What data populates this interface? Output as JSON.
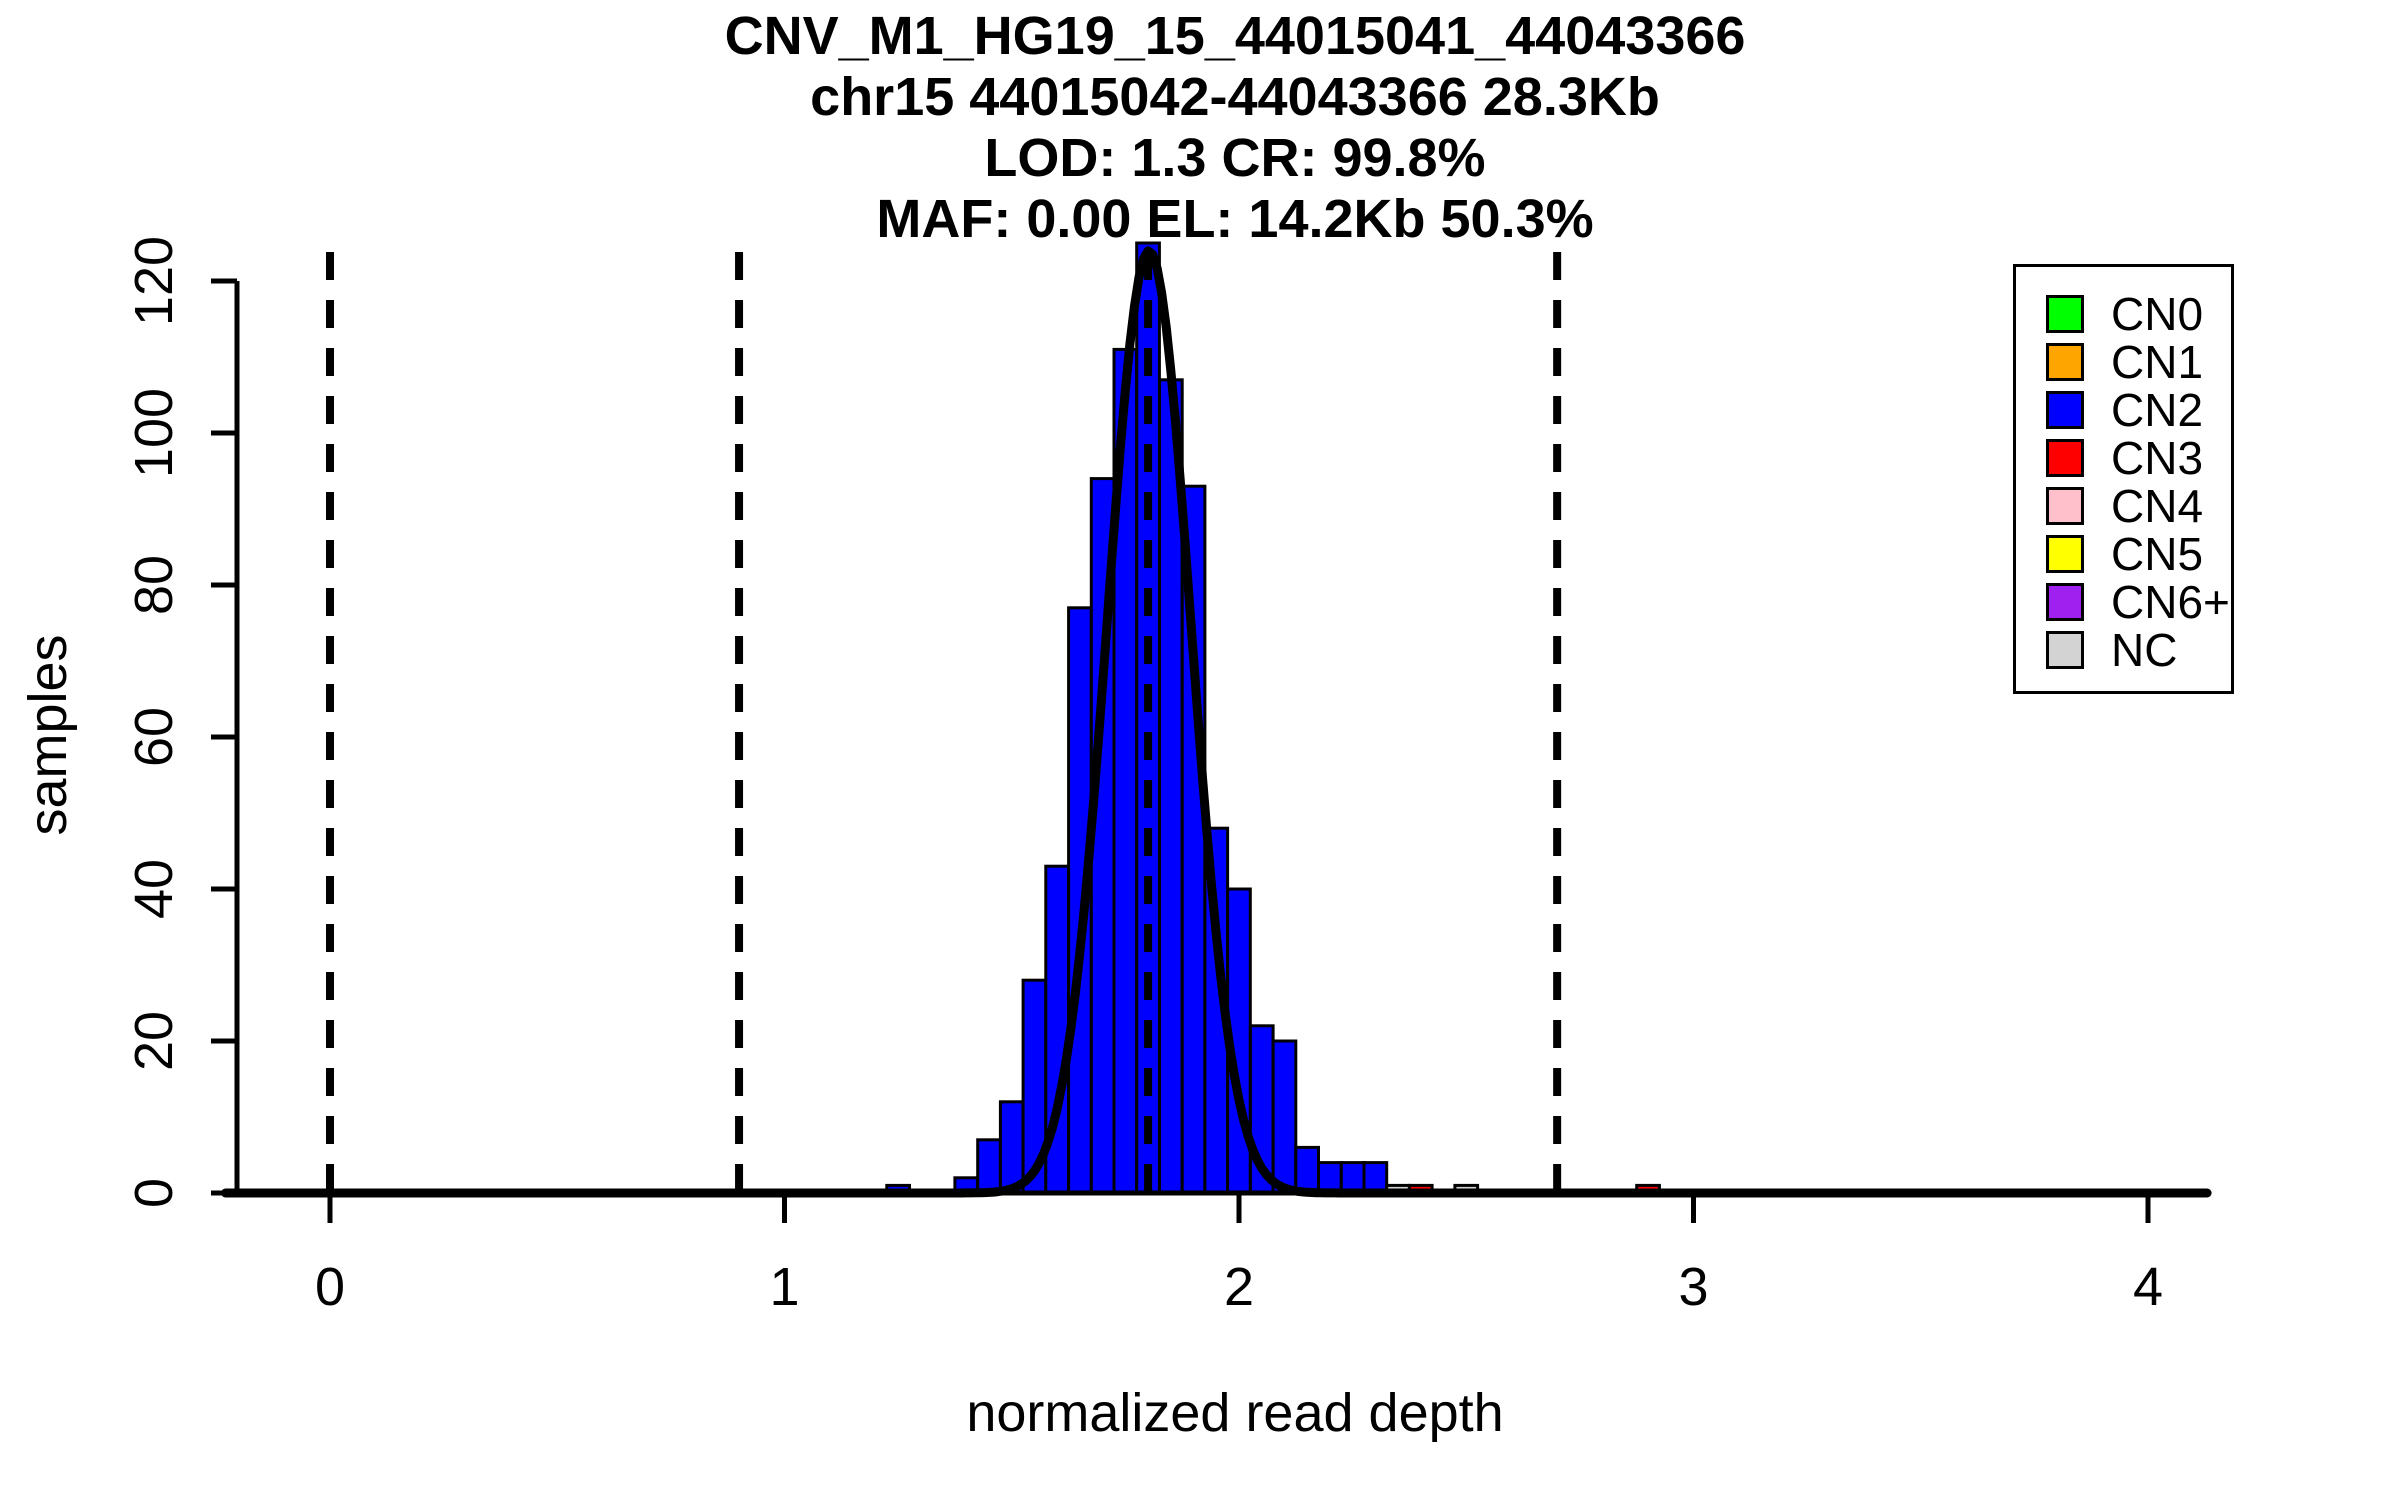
{
  "title": {
    "line1": "CNV_M1_HG19_15_44015041_44043366",
    "line2": "chr15 44015042-44043366 28.3Kb",
    "line3": "LOD: 1.3 CR: 99.8%",
    "line4": "MAF: 0.00 EL: 14.2Kb 50.3%"
  },
  "axes": {
    "xlabel": "normalized read depth",
    "ylabel": "samples"
  },
  "chart_data": {
    "type": "bar",
    "subtype": "histogram",
    "title": "CNV_M1_HG19_15_44015041_44043366 / chr15 44015042-44043366 28.3Kb / LOD: 1.3 CR: 99.8% / MAF: 0.00 EL: 14.2Kb 50.3%",
    "xlabel": "normalized read depth",
    "ylabel": "samples",
    "xlim": [
      -0.23,
      4.13
    ],
    "ylim": [
      0,
      125
    ],
    "x_ticks": [
      0,
      1,
      2,
      3,
      4
    ],
    "y_ticks": [
      0,
      20,
      40,
      60,
      80,
      100,
      120
    ],
    "grid": false,
    "bin_width": 0.05,
    "bins": [
      {
        "x": 1.25,
        "n": 1,
        "cn": "CN2"
      },
      {
        "x": 1.4,
        "n": 2,
        "cn": "CN2"
      },
      {
        "x": 1.45,
        "n": 7,
        "cn": "CN2"
      },
      {
        "x": 1.5,
        "n": 12,
        "cn": "CN2"
      },
      {
        "x": 1.55,
        "n": 28,
        "cn": "CN2"
      },
      {
        "x": 1.6,
        "n": 43,
        "cn": "CN2"
      },
      {
        "x": 1.65,
        "n": 77,
        "cn": "CN2"
      },
      {
        "x": 1.7,
        "n": 94,
        "cn": "CN2"
      },
      {
        "x": 1.75,
        "n": 111,
        "cn": "CN2"
      },
      {
        "x": 1.8,
        "n": 125,
        "cn": "CN2"
      },
      {
        "x": 1.85,
        "n": 107,
        "cn": "CN2"
      },
      {
        "x": 1.9,
        "n": 93,
        "cn": "CN2"
      },
      {
        "x": 1.95,
        "n": 48,
        "cn": "CN2"
      },
      {
        "x": 2.0,
        "n": 40,
        "cn": "CN2"
      },
      {
        "x": 2.05,
        "n": 22,
        "cn": "CN2"
      },
      {
        "x": 2.1,
        "n": 20,
        "cn": "CN2"
      },
      {
        "x": 2.15,
        "n": 6,
        "cn": "CN2"
      },
      {
        "x": 2.2,
        "n": 4,
        "cn": "CN2"
      },
      {
        "x": 2.25,
        "n": 4,
        "cn": "CN2"
      },
      {
        "x": 2.3,
        "n": 4,
        "cn": "CN2"
      },
      {
        "x": 2.35,
        "n": 1,
        "cn": "NC"
      },
      {
        "x": 2.4,
        "n": 1,
        "cn": "CN3"
      },
      {
        "x": 2.5,
        "n": 1,
        "cn": "NC"
      },
      {
        "x": 2.9,
        "n": 1,
        "cn": "CN3"
      }
    ],
    "fit_curve": {
      "shape": "gaussian",
      "mean": 1.802,
      "sigma": 0.092,
      "peak": 124
    },
    "dashed_vlines": [
      0,
      0.9,
      1.8,
      2.7
    ],
    "legend": {
      "position": "top-right",
      "entries": [
        {
          "label": "CN0",
          "color": "#00FF00"
        },
        {
          "label": "CN1",
          "color": "#FFA500"
        },
        {
          "label": "CN2",
          "color": "#0000FF"
        },
        {
          "label": "CN3",
          "color": "#FF0000"
        },
        {
          "label": "CN4",
          "color": "#FFC0CB"
        },
        {
          "label": "CN5",
          "color": "#FFFF00"
        },
        {
          "label": "CN6+",
          "color": "#A020F0"
        },
        {
          "label": "NC",
          "color": "#D3D3D3"
        }
      ]
    },
    "class_colors": {
      "CN0": "#00FF00",
      "CN1": "#FFA500",
      "CN2": "#0000FF",
      "CN3": "#FF0000",
      "CN4": "#FFC0CB",
      "CN5": "#FFFF00",
      "CN6+": "#A020F0",
      "NC": "#D3D3D3"
    },
    "axis_color": "#000000",
    "curve_color": "#000000"
  }
}
